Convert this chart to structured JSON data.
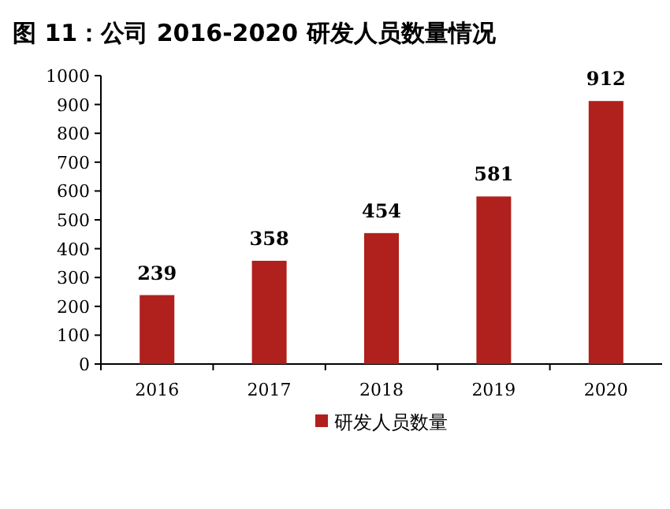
{
  "chart_data": {
    "type": "bar",
    "title": "图 11：公司 2016-2020 研发人员数量情况",
    "categories": [
      "2016",
      "2017",
      "2018",
      "2019",
      "2020"
    ],
    "series": [
      {
        "name": "研发人员数量",
        "color": "#b0201c",
        "values": [
          239,
          358,
          454,
          581,
          912
        ]
      }
    ],
    "ylim": [
      0,
      1000
    ],
    "yticks": [
      0,
      100,
      200,
      300,
      400,
      500,
      600,
      700,
      800,
      900,
      1000
    ],
    "data_labels": true,
    "legend": "bottom",
    "grid": false
  }
}
